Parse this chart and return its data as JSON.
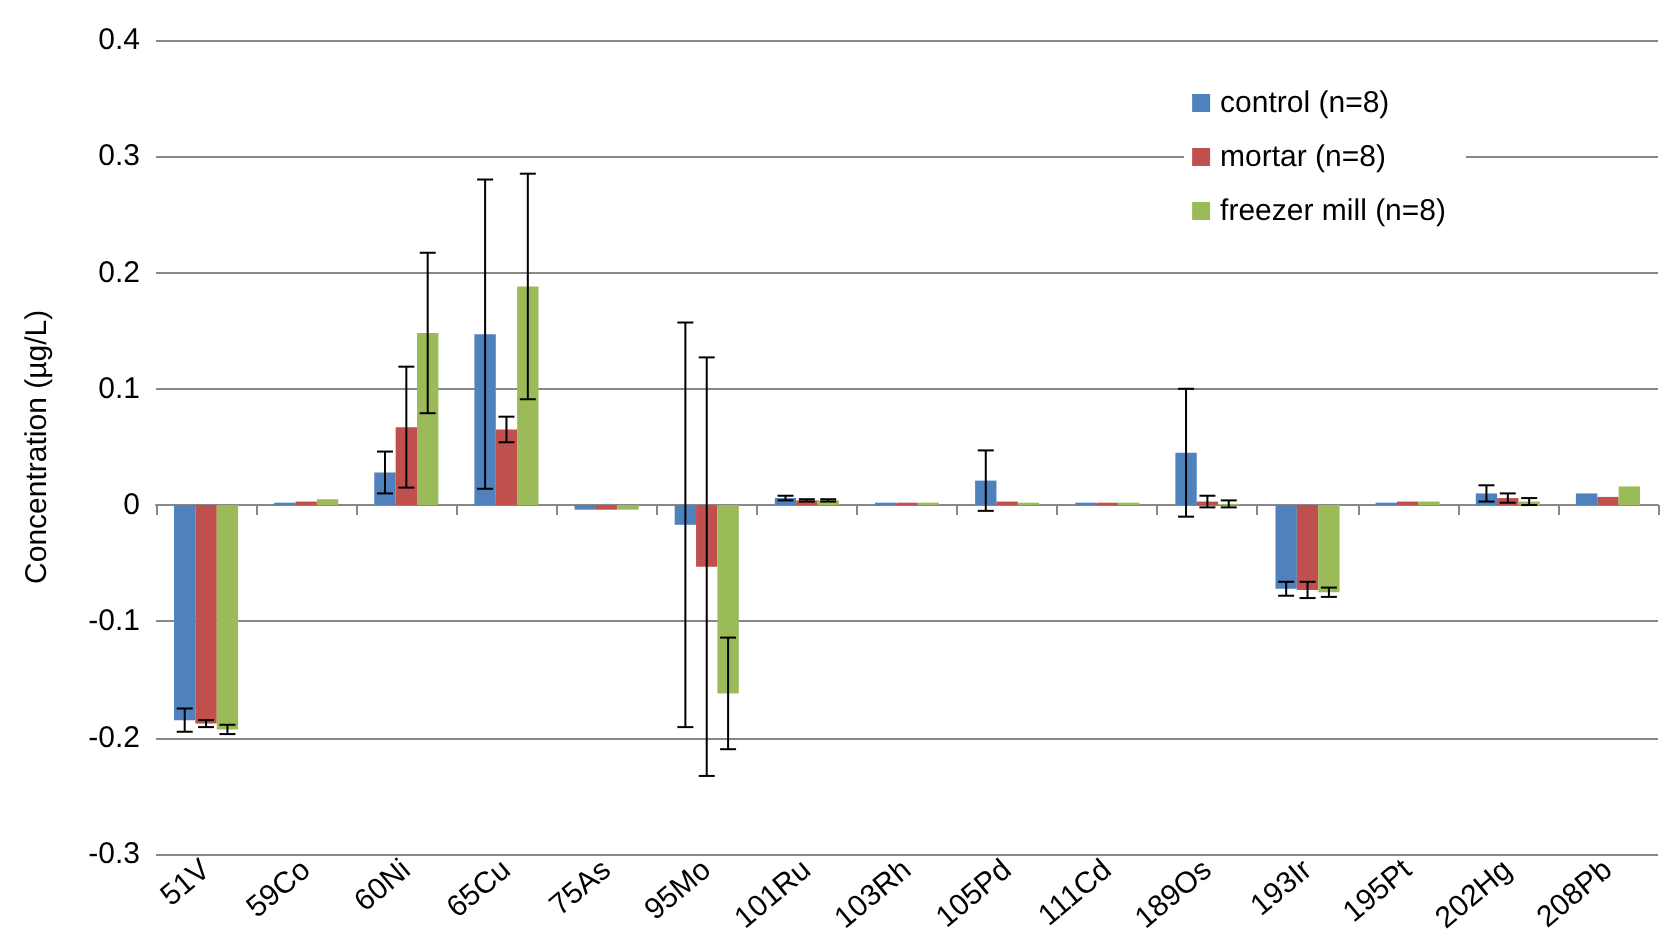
{
  "chart_data": {
    "type": "bar",
    "ylabel": "Concentration (µg/L)",
    "categories": [
      "51V",
      "59Co",
      "60Ni",
      "65Cu",
      "75As",
      "95Mo",
      "101Ru",
      "103Rh",
      "105Pd",
      "111Cd",
      "189Os",
      "193Ir",
      "195Pt",
      "202Hg",
      "208Pb"
    ],
    "series": [
      {
        "name": "control (n=8)",
        "color": "#4f81bd",
        "values": [
          -0.185,
          0.002,
          0.028,
          0.147,
          -0.004,
          -0.017,
          0.006,
          0.002,
          0.021,
          0.002,
          0.045,
          -0.072,
          0.002,
          0.01,
          0.01
        ],
        "errors": [
          0.01,
          null,
          0.018,
          0.133,
          null,
          0.174,
          0.002,
          null,
          0.026,
          null,
          0.055,
          0.006,
          null,
          0.007,
          null
        ]
      },
      {
        "name": "mortar (n=8)",
        "color": "#c0504d",
        "values": [
          -0.188,
          0.003,
          0.067,
          0.065,
          -0.004,
          -0.053,
          0.004,
          0.002,
          0.003,
          0.002,
          0.003,
          -0.073,
          0.003,
          0.006,
          0.007
        ],
        "errors": [
          0.003,
          null,
          0.052,
          0.011,
          null,
          0.18,
          0.001,
          null,
          null,
          null,
          0.005,
          0.007,
          null,
          0.004,
          null
        ]
      },
      {
        "name": "freezer mill (n=8)",
        "color": "#9bbb59",
        "values": [
          -0.193,
          0.005,
          0.148,
          0.188,
          -0.004,
          -0.162,
          0.004,
          0.002,
          0.002,
          0.002,
          0.001,
          -0.075,
          0.003,
          0.003,
          0.016
        ],
        "errors": [
          0.004,
          null,
          0.069,
          0.097,
          null,
          0.048,
          0.001,
          null,
          null,
          null,
          0.003,
          0.004,
          null,
          0.003,
          null
        ]
      }
    ],
    "ylim": [
      -0.3,
      0.4
    ],
    "yticks": [
      -0.3,
      -0.2,
      -0.1,
      0,
      0.1,
      0.2,
      0.3,
      0.4
    ],
    "grid": "y",
    "legend": "top right"
  }
}
